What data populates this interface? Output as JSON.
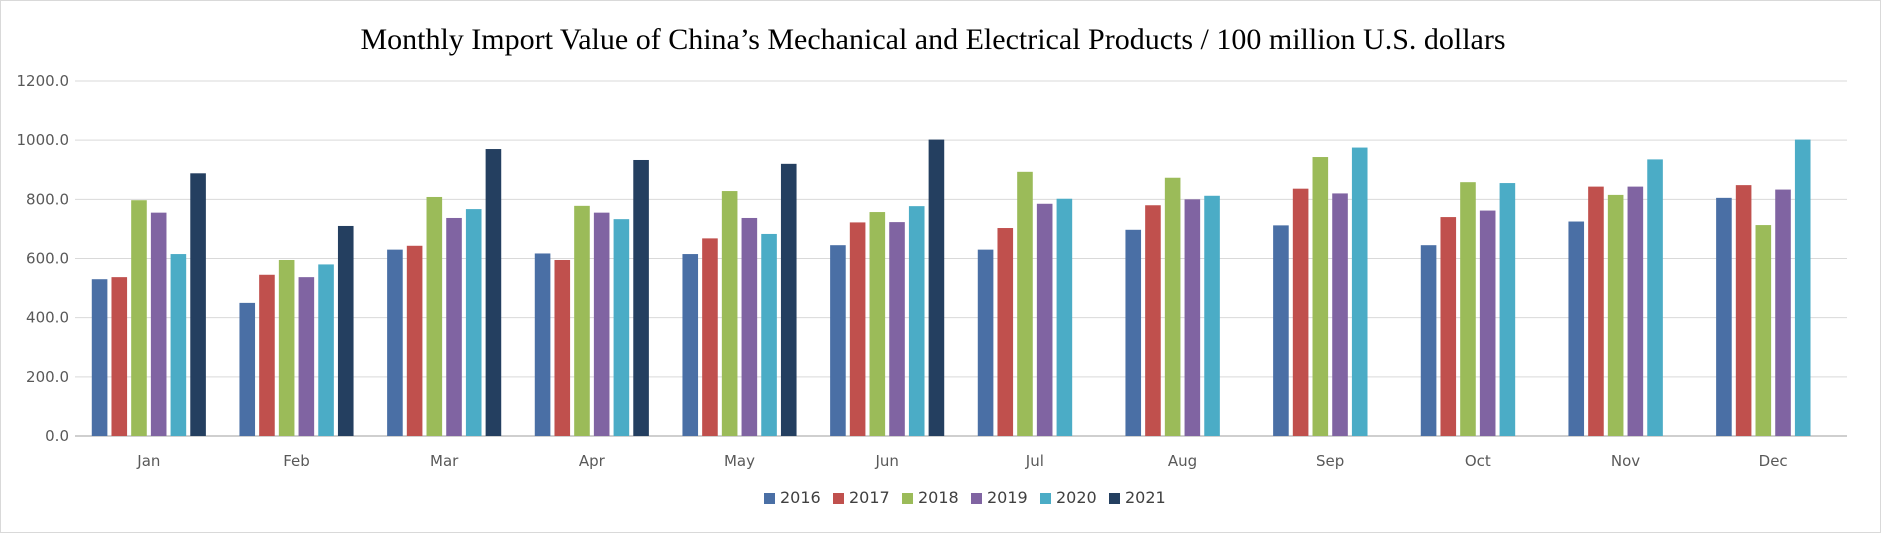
{
  "chart_data": {
    "type": "bar",
    "title": "Monthly Import Value of China’s Mechanical and Electrical Products / 100 million U.S. dollars",
    "xlabel": "",
    "ylabel": "",
    "categories": [
      "Jan",
      "Feb",
      "Mar",
      "Apr",
      "May",
      "Jun",
      "Jul",
      "Aug",
      "Sep",
      "Oct",
      "Nov",
      "Dec"
    ],
    "y_ticks": [
      "0.0",
      "200.0",
      "400.0",
      "600.0",
      "800.0",
      "1000.0",
      "1200.0"
    ],
    "ylim": [
      0,
      1200
    ],
    "grid": true,
    "legend_position": "bottom",
    "series": [
      {
        "name": "2016",
        "color": "#4a6fa5",
        "values": [
          530,
          450,
          630,
          617,
          615,
          645,
          630,
          697,
          712,
          645,
          725,
          805
        ]
      },
      {
        "name": "2017",
        "color": "#c0504d",
        "values": [
          537,
          545,
          643,
          595,
          668,
          722,
          703,
          780,
          836,
          740,
          843,
          848
        ]
      },
      {
        "name": "2018",
        "color": "#9bbb59",
        "values": [
          797,
          595,
          808,
          778,
          828,
          757,
          893,
          873,
          943,
          858,
          815,
          713
        ]
      },
      {
        "name": "2019",
        "color": "#8064a2",
        "values": [
          755,
          537,
          737,
          755,
          737,
          723,
          785,
          800,
          820,
          762,
          843,
          833
        ]
      },
      {
        "name": "2020",
        "color": "#4bacc6",
        "values": [
          615,
          580,
          767,
          733,
          683,
          777,
          802,
          812,
          975,
          855,
          935,
          1002
        ]
      },
      {
        "name": "2021",
        "color": "#243f60",
        "values": [
          888,
          710,
          970,
          933,
          920,
          1002,
          null,
          null,
          null,
          null,
          null,
          null
        ]
      }
    ]
  },
  "colors": {
    "gridline": "#d9d9d9",
    "axis": "#bfbfbf",
    "frame": "#d9d9d9"
  }
}
